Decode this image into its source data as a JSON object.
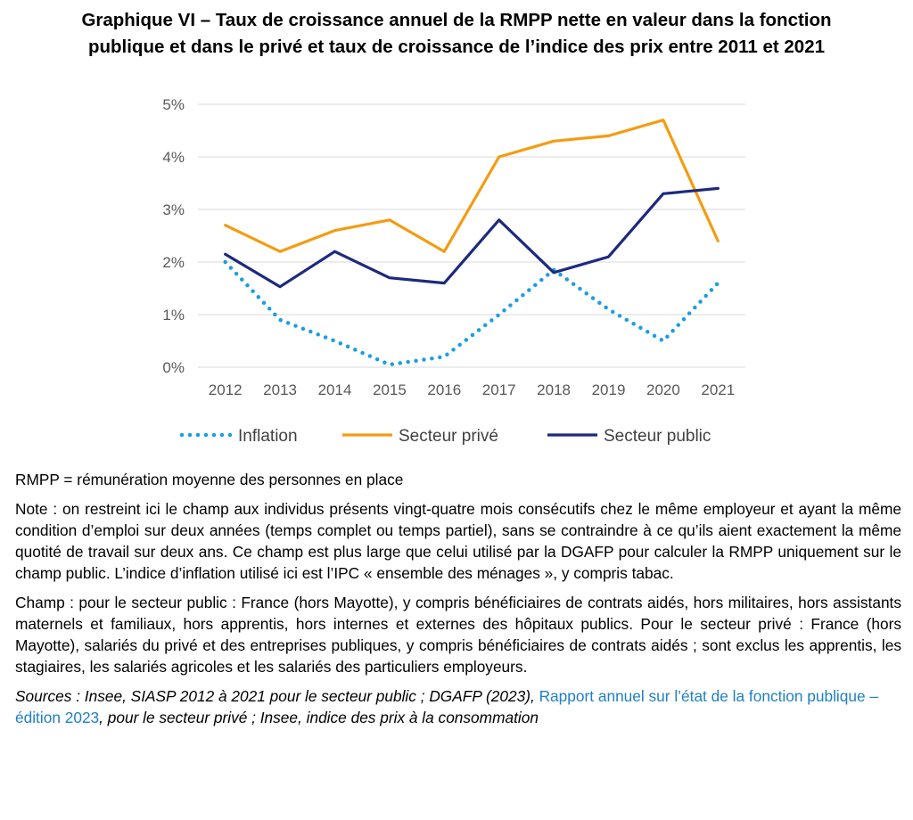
{
  "title": {
    "line1": "Graphique VI – Taux de croissance annuel de la RMPP nette en valeur dans la fonction",
    "line2": "publique et dans le privé et taux de croissance de l’indice des prix entre 2011 et 2021"
  },
  "chart_data": {
    "type": "line",
    "x": [
      "2012",
      "2013",
      "2014",
      "2015",
      "2016",
      "2017",
      "2018",
      "2019",
      "2020",
      "2021"
    ],
    "y_ticks": [
      "0%",
      "1%",
      "2%",
      "3%",
      "4%",
      "5%"
    ],
    "ylim": [
      0,
      5
    ],
    "grid": true,
    "legend_position": "bottom",
    "series": [
      {
        "name": "Inflation",
        "color": "#1b9ee0",
        "style": "dotted",
        "values": [
          2.0,
          0.9,
          0.5,
          0.05,
          0.2,
          1.0,
          1.85,
          1.1,
          0.5,
          1.6
        ]
      },
      {
        "name": "Secteur privé",
        "color": "#f39c12",
        "style": "solid",
        "values": [
          2.7,
          2.2,
          2.6,
          2.8,
          2.2,
          4.0,
          4.3,
          4.4,
          4.7,
          2.4
        ]
      },
      {
        "name": "Secteur public",
        "color": "#1c2a7d",
        "style": "solid",
        "values": [
          2.15,
          1.53,
          2.2,
          1.7,
          1.6,
          2.8,
          1.8,
          2.1,
          3.3,
          3.4
        ]
      }
    ]
  },
  "notes": {
    "rmpp": "RMPP = rémunération moyenne des personnes en place",
    "note": "Note : on restreint ici le champ aux individus présents vingt-quatre mois consécutifs chez le même employeur et ayant la même condition d’emploi sur deux années (temps complet ou temps partiel), sans se contraindre à ce qu’ils aient exactement la même quotité de travail sur deux ans. Ce champ est plus large que celui utilisé par la DGAFP pour calculer la RMPP uniquement sur le champ public. L’indice d’inflation utilisé ici est l’IPC « ensemble des ménages », y compris tabac.",
    "champ": "Champ : pour le secteur public : France (hors Mayotte), y compris bénéficiaires de contrats aidés, hors militaires, hors assistants maternels et familiaux, hors apprentis, hors internes et externes des hôpitaux publics. Pour le secteur privé : France (hors Mayotte), salariés du privé et des entreprises publiques, y compris bénéficiaires de contrats aidés ; sont exclus les apprentis, les stagiaires, les salariés agricoles et les salariés des particuliers employeurs.",
    "sources_prefix": "Sources : Insee, SIASP 2012 à 2021 pour le secteur public ; DGAFP (2023), ",
    "sources_link": "Rapport annuel sur l’état de la fonction publique – édition 2023",
    "sources_suffix": ", pour le secteur privé ; Insee, indice des prix à la consommation"
  }
}
